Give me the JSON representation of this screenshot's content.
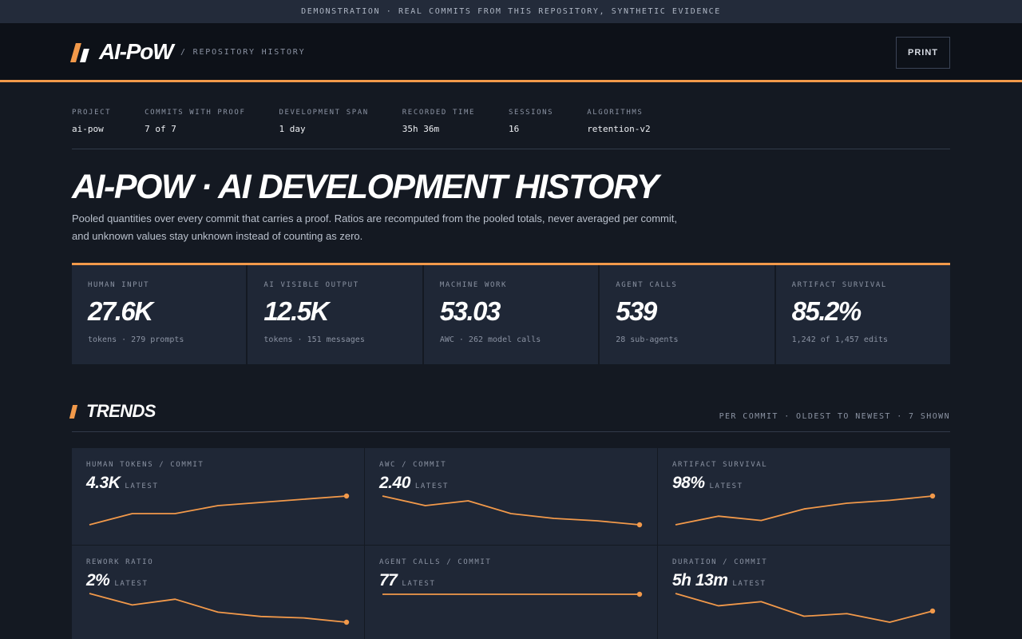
{
  "banner": "DEMONSTRATION · REAL COMMITS FROM THIS REPOSITORY, SYNTHETIC EVIDENCE",
  "header": {
    "logo": "AI-PoW",
    "breadcrumb": "/ REPOSITORY HISTORY",
    "print_label": "PRINT"
  },
  "meta": [
    {
      "label": "PROJECT",
      "value": "ai-pow"
    },
    {
      "label": "COMMITS WITH PROOF",
      "value": "7 of 7"
    },
    {
      "label": "DEVELOPMENT SPAN",
      "value": "1 day"
    },
    {
      "label": "RECORDED TIME",
      "value": "35h 36m"
    },
    {
      "label": "SESSIONS",
      "value": "16"
    },
    {
      "label": "ALGORITHMS",
      "value": "retention-v2"
    }
  ],
  "page": {
    "title": "AI-POW · AI DEVELOPMENT HISTORY",
    "description": "Pooled quantities over every commit that carries a proof. Ratios are recomputed from the pooled totals, never averaged per commit, and unknown values stay unknown instead of counting as zero."
  },
  "cards": [
    {
      "label": "HUMAN INPUT",
      "value": "27.6K",
      "sub": "tokens · 279 prompts"
    },
    {
      "label": "AI VISIBLE OUTPUT",
      "value": "12.5K",
      "sub": "tokens · 151 messages"
    },
    {
      "label": "MACHINE WORK",
      "value": "53.03",
      "sub": "AWC · 262 model calls"
    },
    {
      "label": "AGENT CALLS",
      "value": "539",
      "sub": "28 sub-agents"
    },
    {
      "label": "ARTIFACT SURVIVAL",
      "value": "85.2%",
      "sub": "1,242 of 1,457 edits"
    }
  ],
  "trends": {
    "title": "TRENDS",
    "meta": "PER COMMIT · OLDEST TO NEWEST · 7 SHOWN",
    "latest_label": "LATEST",
    "accent": "#f2994a",
    "items": [
      {
        "label": "HUMAN TOKENS / COMMIT",
        "value": "4.3K",
        "points": [
          0.86,
          0.93,
          0.93,
          0.98,
          1.0,
          1.02,
          1.04
        ]
      },
      {
        "label": "AWC / COMMIT",
        "value": "2.40",
        "points": [
          4.2,
          3.6,
          3.9,
          3.1,
          2.8,
          2.65,
          2.4
        ]
      },
      {
        "label": "ARTIFACT SURVIVAL",
        "value": "98%",
        "points": [
          78,
          84,
          81,
          89,
          93,
          95,
          98
        ]
      },
      {
        "label": "REWORK RATIO",
        "value": "2%",
        "points": [
          22,
          14,
          18,
          9,
          6,
          5,
          2
        ]
      },
      {
        "label": "AGENT CALLS / COMMIT",
        "value": "77",
        "points": [
          77,
          77,
          77,
          77,
          77,
          77,
          77
        ]
      },
      {
        "label": "DURATION / COMMIT",
        "value": "5h 13m",
        "points": [
          9.9,
          6.6,
          7.7,
          3.8,
          4.5,
          2.2,
          5.2
        ]
      }
    ]
  }
}
